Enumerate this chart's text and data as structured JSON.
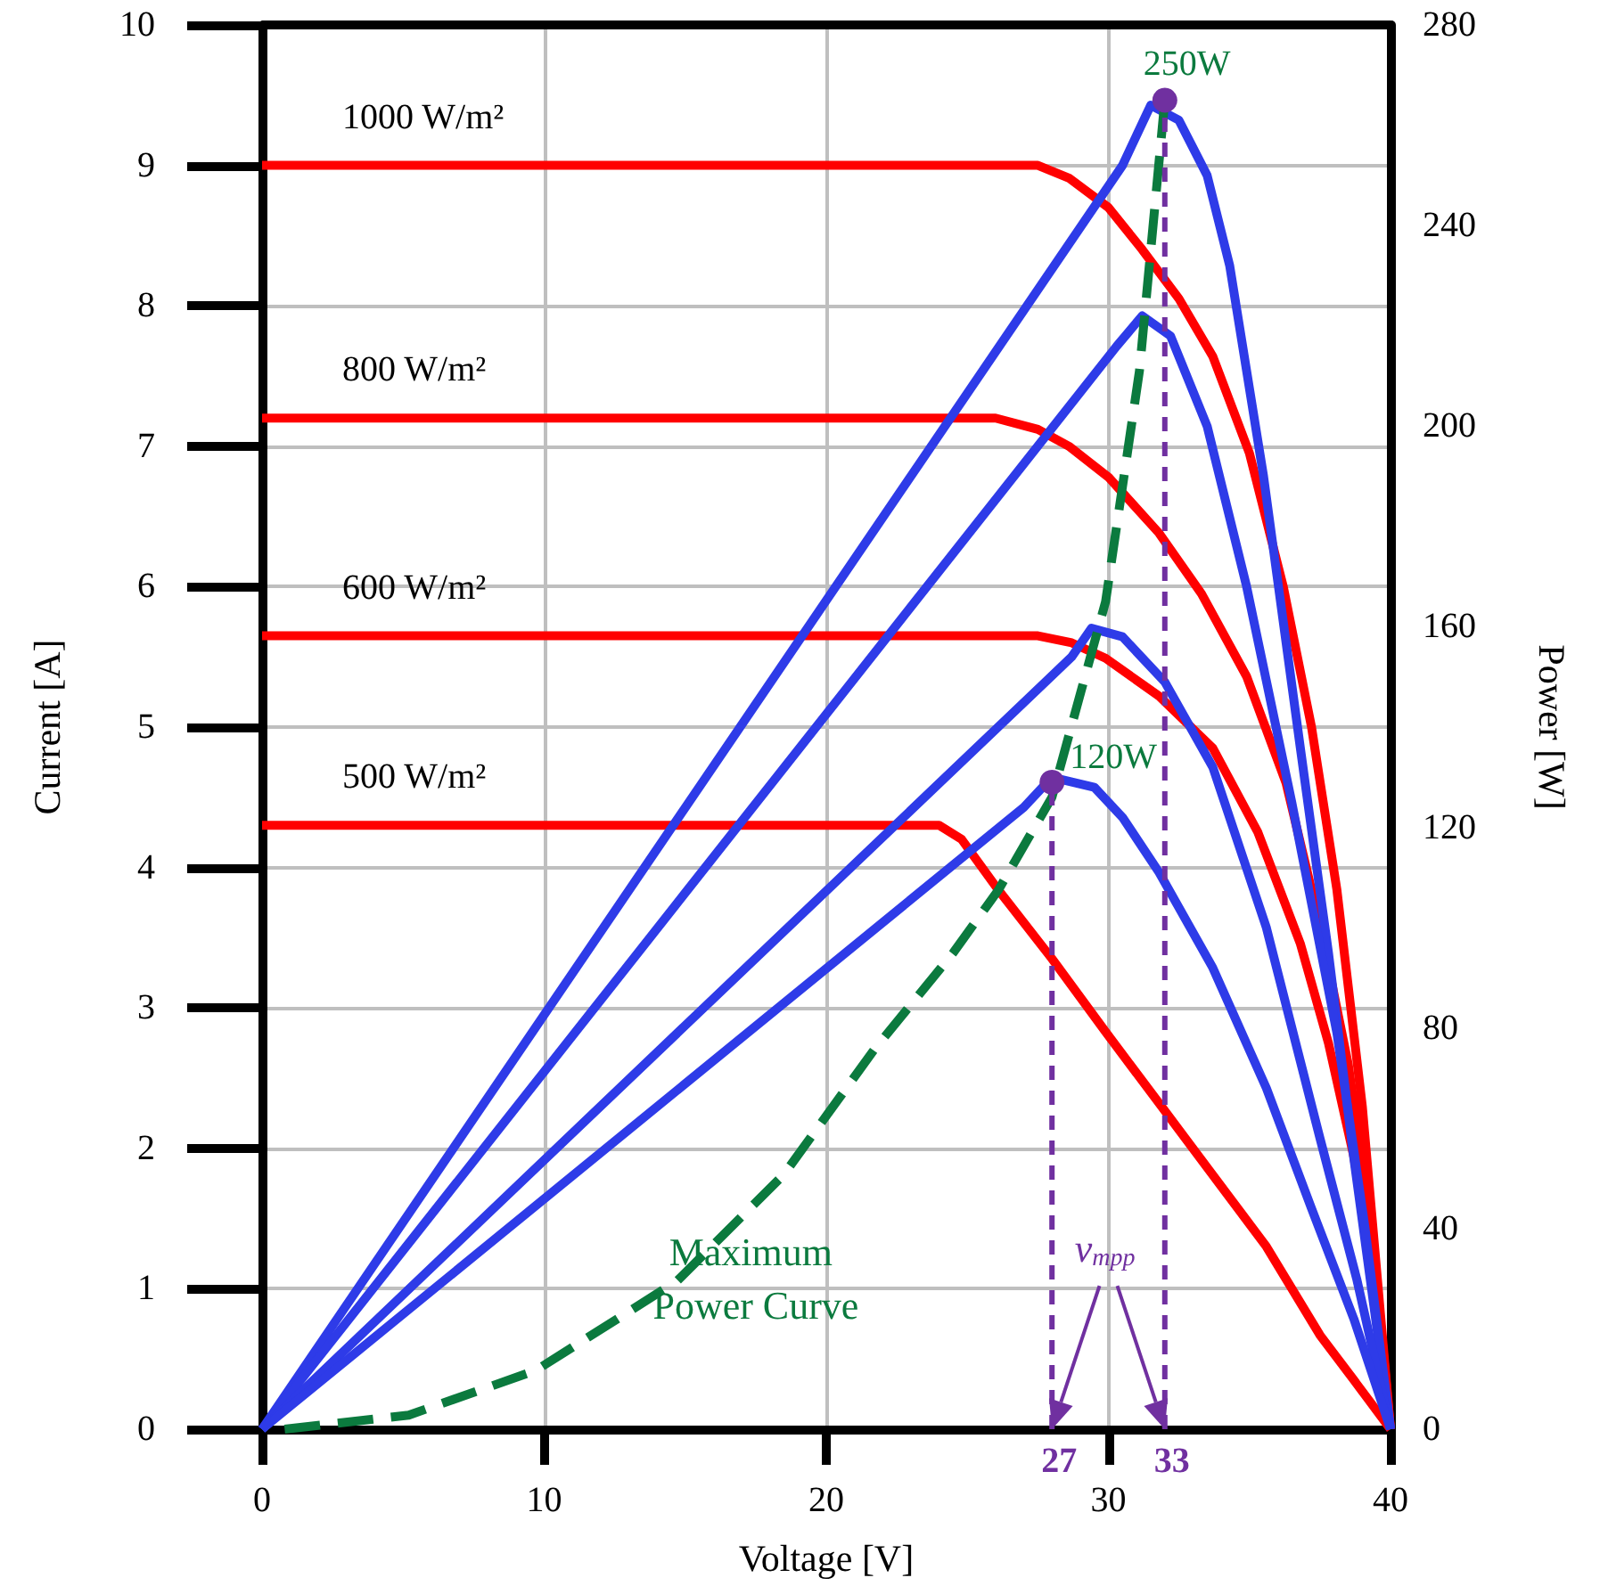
{
  "chart_data": {
    "type": "line",
    "xlabel": "Voltage [V]",
    "ylabel": "Current [A]",
    "y2label": "Power [W]",
    "xlim": [
      0,
      40
    ],
    "xticks": [
      0,
      10,
      20,
      30,
      40
    ],
    "ylim": [
      0,
      10
    ],
    "yticks": [
      0,
      1,
      2,
      3,
      4,
      5,
      6,
      7,
      8,
      9,
      10
    ],
    "y2lim": [
      0,
      280
    ],
    "y2ticks": [
      0,
      40,
      80,
      120,
      160,
      200,
      240,
      280
    ],
    "grid": true,
    "marker": "none",
    "line_style": "solid",
    "series": [
      {
        "name": "1000 W/m²",
        "color": "#ff0000",
        "x": [
          0,
          27.5,
          28.6,
          30,
          31.2,
          32.5,
          33.7,
          35,
          36.2,
          37.2,
          38.1,
          39,
          40
        ],
        "values": [
          9,
          9,
          8.91,
          8.7,
          8.4,
          8.05,
          7.64,
          6.95,
          6.0,
          5.0,
          3.84,
          2.3,
          0
        ]
      },
      {
        "name": "800 W/m²",
        "color": "#ff0000",
        "x": [
          0,
          26,
          27.5,
          28.6,
          30,
          31.8,
          33.3,
          34.9,
          36.3,
          37.5,
          38.5,
          39.3,
          40
        ],
        "values": [
          7.2,
          7.2,
          7.12,
          7.0,
          6.78,
          6.38,
          5.95,
          5.36,
          4.6,
          3.59,
          2.6,
          1.5,
          0
        ]
      },
      {
        "name": "600 W/m²",
        "color": "#ff0000",
        "x": [
          0,
          27.5,
          28.7,
          29.9,
          31.8,
          33.7,
          35.3,
          36.8,
          37.8,
          38.7,
          39.4,
          40
        ],
        "values": [
          5.65,
          5.65,
          5.6,
          5.49,
          5.22,
          4.85,
          4.25,
          3.46,
          2.75,
          1.94,
          1.1,
          0
        ]
      },
      {
        "name": "500 W/m²",
        "color": "#ff0000",
        "x": [
          0,
          24,
          24.8,
          26.1,
          28,
          29.9,
          31.8,
          33.7,
          35.6,
          37.5,
          38.7,
          40
        ],
        "values": [
          4.3,
          4.3,
          4.2,
          3.84,
          3.35,
          2.83,
          2.32,
          1.81,
          1.3,
          0.67,
          0.35,
          0
        ]
      },
      {
        "color": "#2e3be8",
        "axis": "y2",
        "x": [
          0,
          30.5,
          31.5,
          32.5,
          33.5,
          34.3,
          35.5,
          36.8,
          37.8,
          38.7,
          39.4,
          40
        ],
        "values": [
          0,
          252,
          264,
          261,
          250,
          232,
          190,
          136,
          95,
          54,
          25,
          0
        ]
      },
      {
        "color": "#2e3be8",
        "axis": "y2",
        "x": [
          0,
          30.3,
          31.2,
          32.2,
          33.5,
          34.9,
          36.5,
          38.1,
          39.1,
          40
        ],
        "values": [
          0,
          216,
          222,
          218,
          200,
          168,
          125,
          79,
          40,
          0
        ]
      },
      {
        "color": "#2e3be8",
        "axis": "y2",
        "x": [
          0,
          28.7,
          29.4,
          30.5,
          32.0,
          33.7,
          35.6,
          37.5,
          38.8,
          40
        ],
        "values": [
          0,
          154,
          159.7,
          158,
          149,
          132,
          100,
          58,
          30,
          0
        ]
      },
      {
        "color": "#2e3be8",
        "axis": "y2",
        "x": [
          0,
          27,
          28,
          29.5,
          30.5,
          31.8,
          33.7,
          35.6,
          37.2,
          38.7,
          40
        ],
        "values": [
          0,
          124,
          130,
          128,
          122,
          111,
          92,
          68,
          44,
          22,
          0
        ]
      },
      {
        "color": "#0b7a3e",
        "axis": "y2",
        "line_style": "dashed",
        "x": [
          0.8,
          5.2,
          9.7,
          14.7,
          18.5,
          21.7,
          24.5,
          26.1,
          28,
          29.9,
          31.1,
          32
        ],
        "values": [
          0,
          2.8,
          11.7,
          29.5,
          50.8,
          75.7,
          95,
          107.5,
          126,
          165,
          211,
          265
        ]
      },
      {
        "type": "scatter",
        "marker": "circle",
        "color": "#7030a0",
        "axis": "y2",
        "x": [
          28,
          32
        ],
        "values": [
          129,
          265
        ]
      }
    ],
    "ref_lines": [
      {
        "axis": "x",
        "value": 28,
        "color": "#7030a0",
        "line_style": "dashed"
      },
      {
        "axis": "x",
        "value": 32,
        "color": "#7030a0",
        "line_style": "dashed"
      }
    ],
    "annotations": [
      "250W",
      "120W",
      "27",
      "33",
      "v$_{mpp}$",
      "Maximum Power Curve"
    ]
  }
}
